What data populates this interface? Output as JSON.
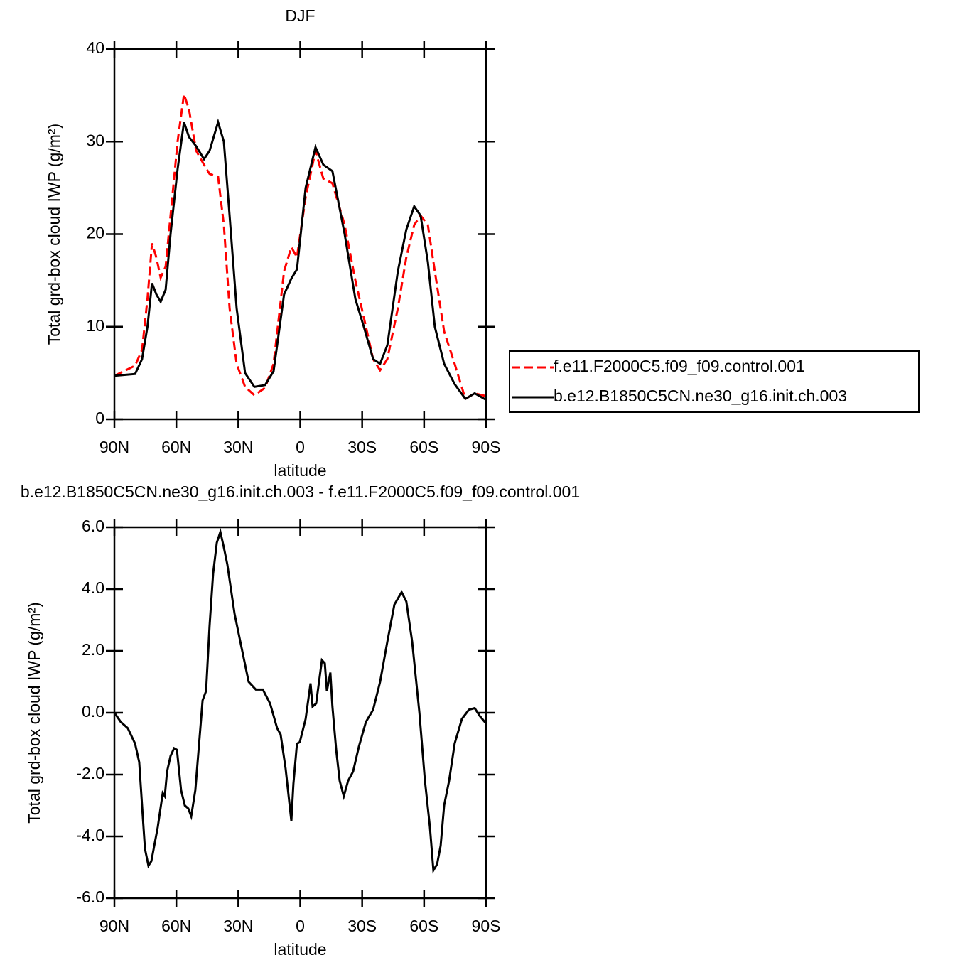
{
  "chart_data": [
    {
      "type": "line",
      "title": "DJF",
      "xlabel": "latitude",
      "ylabel": "Total grd-box cloud IWP (g/m²)",
      "xlim": [
        90,
        -90
      ],
      "ylim": [
        0,
        40
      ],
      "xticks": [
        {
          "value": 90,
          "label": "90N"
        },
        {
          "value": 60,
          "label": "60N"
        },
        {
          "value": 30,
          "label": "30N"
        },
        0,
        {
          "value": -30,
          "label": "30S"
        },
        {
          "value": -60,
          "label": "60S"
        },
        {
          "value": -90,
          "label": "90S"
        }
      ],
      "yticks": [
        0,
        10,
        20,
        30,
        40
      ],
      "legend": "right",
      "x": [
        90,
        80,
        76.6,
        74,
        71.8,
        69.7,
        67.6,
        65.2,
        62.8,
        59.4,
        56.3,
        53.9,
        50.4,
        46.6,
        43.9,
        39.8,
        37,
        34.2,
        30.8,
        26.7,
        22.2,
        17,
        12.9,
        7.8,
        4.3,
        1.6,
        -2.6,
        -7.4,
        -11.2,
        -15.6,
        -21.5,
        -26.7,
        -30.8,
        -35.3,
        -38.7,
        -42.2,
        -47.3,
        -51.4,
        -55.2,
        -58.3,
        -61.8,
        -65.2,
        -69.7,
        -74.8,
        -80,
        -84.5,
        -90
      ],
      "series": [
        {
          "name": "f.e11.F2000C5.f09_f09.control.001",
          "color": "#ff0000",
          "dashed": true,
          "values": [
            4.7,
            5.8,
            7.5,
            13,
            19,
            17.5,
            15.3,
            16.5,
            22,
            30,
            35.1,
            33.5,
            29,
            27.5,
            26.5,
            26.2,
            21,
            12,
            6,
            3.5,
            2.6,
            3.4,
            6,
            16,
            18.6,
            17.5,
            24,
            29,
            26,
            25.5,
            21,
            15,
            11,
            6.5,
            5.3,
            6.5,
            12,
            17.5,
            21,
            22,
            21,
            16,
            9.5,
            6,
            2.2,
            2.8,
            2.5
          ]
        },
        {
          "name": "b.e12.B1850C5CN.ne30_g16.init.ch.003",
          "color": "#000000",
          "dashed": false,
          "values": [
            4.7,
            4.9,
            6.5,
            10,
            14.7,
            13.5,
            12.7,
            14,
            20,
            27,
            32.1,
            30.5,
            29.5,
            28.1,
            29,
            32.1,
            30,
            22,
            12,
            5,
            3.5,
            3.7,
            5.2,
            13.5,
            15.2,
            16.2,
            25,
            29.4,
            27.5,
            26.8,
            20,
            13,
            10,
            6.5,
            6,
            8,
            16,
            20.5,
            23,
            22,
            17,
            10,
            6,
            3.8,
            2.2,
            2.8,
            2.1
          ]
        }
      ]
    },
    {
      "type": "line",
      "title": "b.e12.B1850C5CN.ne30_g16.init.ch.003 - f.e11.F2000C5.f09_f09.control.001",
      "xlabel": "latitude",
      "ylabel": "Total grd-box cloud IWP (g/m²)",
      "xlim": [
        90,
        -90
      ],
      "ylim": [
        -6,
        6
      ],
      "xticks": [
        {
          "value": 90,
          "label": "90N"
        },
        {
          "value": 60,
          "label": "60N"
        },
        {
          "value": 30,
          "label": "30N"
        },
        0,
        {
          "value": -30,
          "label": "30S"
        },
        {
          "value": -60,
          "label": "60S"
        },
        {
          "value": -90,
          "label": "90S"
        }
      ],
      "yticks": [
        {
          "value": 6,
          "label": "6.0"
        },
        {
          "value": 4,
          "label": "4.0"
        },
        {
          "value": 2,
          "label": "2.0"
        },
        {
          "value": 0,
          "label": "0.0"
        },
        {
          "value": -2,
          "label": "-2.0"
        },
        {
          "value": -4,
          "label": "-4.0"
        },
        {
          "value": -6,
          "label": "-6.0"
        }
      ],
      "x": [
        90,
        86.9,
        83.5,
        80,
        78,
        76.6,
        75.2,
        73.5,
        72.1,
        69,
        66.6,
        65.6,
        64.5,
        62.8,
        61.1,
        59.7,
        57.7,
        55.9,
        54.2,
        52.8,
        50.8,
        47.3,
        45.6,
        43.9,
        42.2,
        40.4,
        38.7,
        37,
        35.3,
        31.8,
        28.4,
        25,
        21.5,
        18.1,
        14.6,
        11.2,
        9.5,
        7.1,
        4.3,
        3.3,
        1.6,
        0.2,
        -2.6,
        -5,
        -6,
        -7.7,
        -10.5,
        -11.9,
        -12.9,
        -14.6,
        -15.6,
        -17.4,
        -19.1,
        -21.1,
        -23.2,
        -25.6,
        -28.4,
        -31.8,
        -35.3,
        -38.7,
        -42.2,
        -45.6,
        -49.1,
        -51.4,
        -54.2,
        -57.7,
        -60.4,
        -62.8,
        -64.5,
        -66.3,
        -68,
        -69.7,
        -72.1,
        -74.8,
        -78.3,
        -81.7,
        -84.5,
        -86.9,
        -90
      ],
      "series": [
        {
          "color": "#000000",
          "dashed": false,
          "values": [
            0,
            -0.3,
            -0.5,
            -1.0,
            -1.6,
            -3.0,
            -4.4,
            -4.95,
            -4.8,
            -3.7,
            -2.6,
            -2.7,
            -1.9,
            -1.4,
            -1.15,
            -1.2,
            -2.5,
            -3.0,
            -3.1,
            -3.35,
            -2.5,
            0.4,
            0.7,
            2.8,
            4.5,
            5.5,
            5.85,
            5.35,
            4.8,
            3.2,
            2.1,
            1.0,
            0.75,
            0.75,
            0.3,
            -0.5,
            -0.7,
            -1.8,
            -3.5,
            -2.3,
            -1.0,
            -0.95,
            -0.2,
            0.95,
            0.2,
            0.3,
            1.7,
            1.6,
            0.7,
            1.3,
            0.2,
            -1.2,
            -2.2,
            -2.7,
            -2.2,
            -1.9,
            -1.1,
            -0.3,
            0.1,
            1.0,
            2.3,
            3.5,
            3.9,
            3.6,
            2.3,
            0.0,
            -2.2,
            -3.7,
            -5.1,
            -4.9,
            -4.3,
            -3.0,
            -2.2,
            -1.0,
            -0.2,
            0.1,
            0.15,
            -0.1,
            -0.35
          ]
        }
      ]
    }
  ]
}
